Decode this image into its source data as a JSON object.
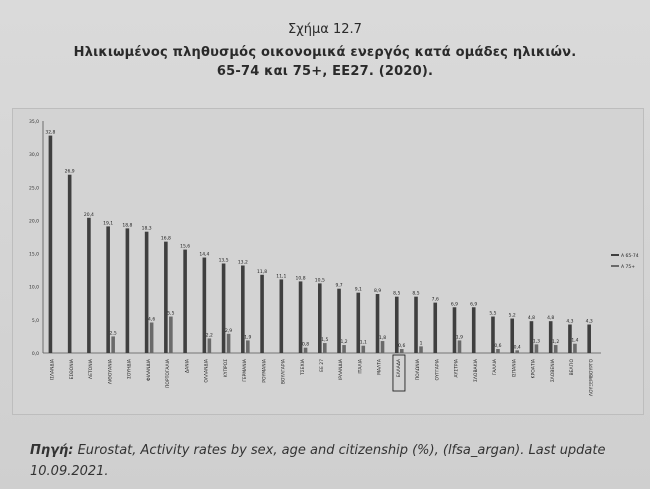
{
  "figure_label": "Σχήμα 12.7",
  "title_line1": "Ηλικιωμένος πληθυσμός οικονομικά ενεργός κατά ομάδες ηλικιών.",
  "title_line2": "65-74 και 75+, ΕΕ27. (2020).",
  "source": {
    "label": "Πηγή:",
    "text": "Eurostat, Activity rates by sex, age and citizenship (%), (lfsa_argan). Last update 10.09.2021."
  },
  "colors": {
    "bar_dark": "#3f3f3f",
    "bar_light": "#6a6a6a",
    "axis": "#555555",
    "highlight_box": "#222222"
  },
  "chart_data": {
    "type": "bar",
    "ylim": [
      0,
      35
    ],
    "yticks": [
      "35,0",
      "30,0",
      "25,0",
      "20,0",
      "15,0",
      "10,0",
      "5,0",
      "0,0"
    ],
    "legend": [
      "Α 65-74",
      "Α 75+"
    ],
    "legend_position": "right",
    "categories": [
      "ΙΣΛΑΝΔΙΑ",
      "ΕΣΘΟΝΙΑ",
      "ΛΕΤΟΝΙΑ",
      "ΛΙΘΟΥΑΝΙΑ",
      "ΣΟΥΗΔΙΑ",
      "ΦΙΛΑΝΔΙΑ",
      "ΠΟΡΤΟΓΑΛΙΑ",
      "ΔΑΝΙΑ",
      "ΟΛΛΑΝΔΙΑ",
      "ΚΥΠΡΟΣ",
      "ΓΕΡΜΑΝΙΑ",
      "ΡΟΥΜΑΝΙΑ",
      "ΒΟΥΛΓΑΡΙΑ",
      "ΤΣΕΧΙΑ",
      "ΕΕ 27",
      "ΙΡΛΑΝΔΙΑ",
      "ΙΤΑΛΙΑ",
      "ΜΑΛΤΑ",
      "ΕΛΛΑΔΑ",
      "ΠΟΛΩΝΙΑ",
      "ΟΥΓΓΑΡΙΑ",
      "ΑΥΣΤΡΙΑ",
      "ΣΛΟΒΑΚΙΑ",
      "ΓΑΛΛΙΑ",
      "ΙΣΠΑΝΙΑ",
      "ΚΡΟΑΤΙΑ",
      "ΣΛΟΒΕΝΙΑ",
      "ΒΕΛΓΙΟ",
      "ΛΟΥΞΕΜΒΟΥΡΓΟ"
    ],
    "highlight_category": "ΕΛΛΑΔΑ",
    "series": [
      {
        "name": "Α 65-74",
        "values": [
          32.8,
          26.9,
          20.4,
          19.1,
          18.8,
          18.3,
          16.8,
          15.6,
          14.4,
          13.5,
          13.2,
          11.8,
          11.1,
          10.8,
          10.5,
          9.7,
          9.1,
          8.9,
          8.5,
          8.5,
          7.6,
          6.9,
          6.9,
          5.5,
          5.2,
          4.8,
          4.8,
          4.3,
          4.3
        ]
      },
      {
        "name": "Α 75+",
        "values": [
          null,
          null,
          null,
          2.5,
          null,
          4.6,
          5.5,
          null,
          2.2,
          2.9,
          1.9,
          null,
          null,
          0.8,
          1.5,
          1.2,
          1.1,
          1.8,
          0.6,
          1,
          null,
          1.9,
          null,
          0.6,
          0.4,
          1.3,
          1.2,
          1.4,
          null
        ]
      }
    ],
    "value_labels_65_74": [
      "32,8",
      "26,9",
      "20,4",
      "19,1",
      "18,8",
      "18,3",
      "16,8",
      "15,6",
      "14,4",
      "13,5",
      "13,2",
      "11,8",
      "11,1",
      "10,8",
      "10,5",
      "9,7",
      "9,1",
      "8,9",
      "8,5",
      "8,5",
      "7,6",
      "6,9",
      "6,9",
      "5,5",
      "5,2",
      "4,8",
      "4,8",
      "4,3",
      "4,3"
    ],
    "value_labels_75_plus": [
      "",
      "",
      "",
      "2,5",
      "",
      "4,6",
      "5,5",
      "",
      "2,2",
      "2,9",
      "1,9",
      "",
      "",
      "0,8",
      "1,5",
      "1,2",
      "1,1",
      "1,8",
      "0,6",
      "1",
      "",
      "1,9",
      "",
      "0,6",
      "0,4",
      "1,3",
      "1,2",
      "1,4",
      ""
    ]
  }
}
